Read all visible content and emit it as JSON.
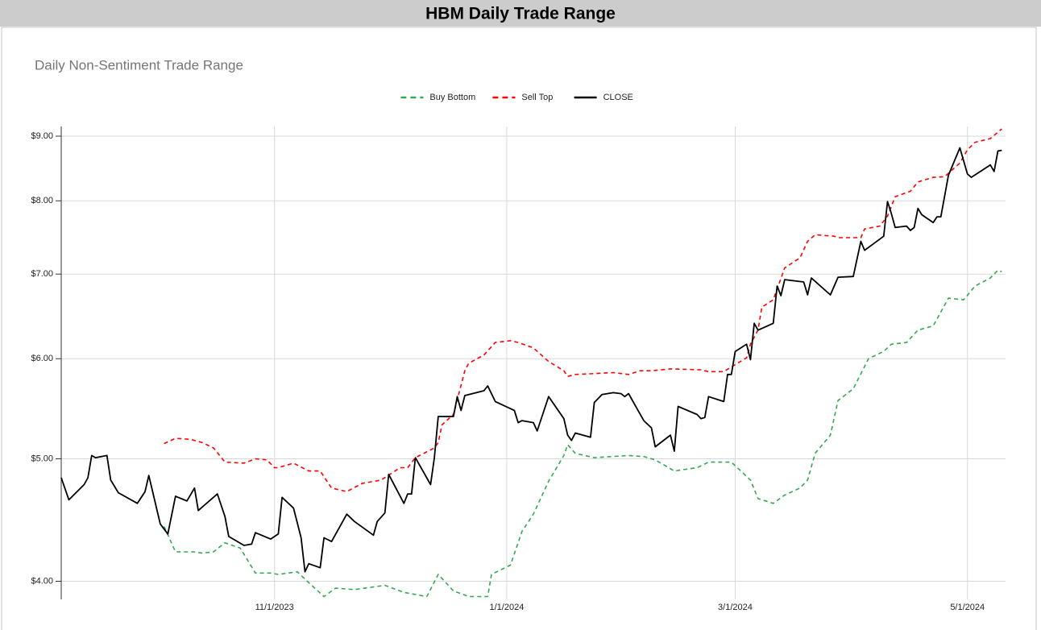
{
  "chart_data": {
    "type": "line",
    "title": "HBM Daily Trade Range",
    "subtitle": "Daily Non-Sentiment Trade Range",
    "log_y": true,
    "grid": true,
    "legend_position": "top",
    "xlim": [
      "9/6/2023",
      "5/11/2024"
    ],
    "xticks": [
      "11/1/2023",
      "1/1/2024",
      "3/1/2024",
      "5/1/2024"
    ],
    "ylim": [
      3.87,
      9.16
    ],
    "yticks": [
      {
        "value": 4,
        "label": "$4.00"
      },
      {
        "value": 5,
        "label": "$5.00"
      },
      {
        "value": 6,
        "label": "$6.00"
      },
      {
        "value": 7,
        "label": "$7.00"
      },
      {
        "value": 8,
        "label": "$8.00"
      },
      {
        "value": 9,
        "label": "$9.00"
      }
    ],
    "series": [
      {
        "name": "Buy Bottom",
        "color": "#34a853",
        "dashed": true,
        "x": [
          "10/3/2023",
          "10/6/2023",
          "10/11/2023",
          "10/13/2023",
          "10/16/2023",
          "10/19/2023",
          "10/23/2023",
          "10/27/2023",
          "10/31/2023",
          "11/2/2023",
          "11/7/2023",
          "11/10/2023",
          "11/14/2023",
          "11/17/2023",
          "11/22/2023",
          "11/30/2023",
          "12/5/2023",
          "12/11/2023",
          "12/14/2023",
          "12/18/2023",
          "12/20/2023",
          "12/22/2023",
          "12/27/2023",
          "12/28/2023",
          "1/2/2024",
          "1/5/2024",
          "1/8/2024",
          "1/12/2024",
          "1/16/2024",
          "1/17/2024",
          "1/19/2024",
          "1/24/2024",
          "2/2/2024",
          "2/6/2024",
          "2/9/2024",
          "2/14/2024",
          "2/20/2024",
          "2/23/2024",
          "2/29/2024",
          "3/5/2024",
          "3/7/2024",
          "3/11/2024",
          "3/14/2024",
          "3/18/2024",
          "3/20/2024",
          "3/22/2024",
          "3/26/2024",
          "3/28/2024",
          "4/1/2024",
          "4/5/2024",
          "4/9/2024",
          "4/11/2024",
          "4/15/2024",
          "4/18/2024",
          "4/22/2024",
          "4/26/2024",
          "4/30/2024",
          "5/3/2024",
          "5/7/2024",
          "5/9/2024",
          "5/10/2024"
        ],
        "values": [
          4.42,
          4.22,
          4.22,
          4.21,
          4.22,
          4.29,
          4.25,
          4.06,
          4.06,
          4.05,
          4.07,
          3.99,
          3.89,
          3.95,
          3.94,
          3.97,
          3.92,
          3.89,
          4.05,
          3.93,
          3.91,
          3.89,
          3.89,
          4.05,
          4.12,
          4.38,
          4.52,
          4.8,
          5.03,
          5.13,
          5.05,
          5.01,
          5.03,
          5.02,
          4.99,
          4.89,
          4.92,
          4.97,
          4.97,
          4.81,
          4.65,
          4.61,
          4.68,
          4.74,
          4.81,
          5.05,
          5.22,
          5.56,
          5.68,
          6.0,
          6.08,
          6.16,
          6.18,
          6.32,
          6.37,
          6.7,
          6.68,
          6.85,
          6.95,
          7.05,
          7.03
        ]
      },
      {
        "name": "Sell Top",
        "color": "#ff0000",
        "dashed": true,
        "x": [
          "10/3/2023",
          "10/6/2023",
          "10/10/2023",
          "10/13/2023",
          "10/16/2023",
          "10/19/2023",
          "10/24/2023",
          "10/27/2023",
          "10/30/2023",
          "11/1/2023",
          "11/2/2023",
          "11/6/2023",
          "11/10/2023",
          "11/13/2023",
          "11/16/2023",
          "11/20/2023",
          "11/24/2023",
          "11/29/2023",
          "12/4/2023",
          "12/6/2023",
          "12/8/2023",
          "12/13/2023",
          "12/14/2023",
          "12/15/2023",
          "12/18/2023",
          "12/21/2023",
          "12/22/2023",
          "12/26/2023",
          "12/29/2023",
          "1/2/2024",
          "1/4/2024",
          "1/8/2024",
          "1/12/2024",
          "1/16/2024",
          "1/17/2024",
          "1/19/2024",
          "1/24/2024",
          "1/29/2024",
          "2/2/2024",
          "2/5/2024",
          "2/8/2024",
          "2/13/2024",
          "2/21/2024",
          "2/23/2024",
          "2/27/2024",
          "2/29/2024",
          "3/4/2024",
          "3/5/2024",
          "3/7/2024",
          "3/8/2024",
          "3/11/2024",
          "3/14/2024",
          "3/18/2024",
          "3/20/2024",
          "3/22/2024",
          "3/27/2024",
          "3/28/2024",
          "4/3/2024",
          "4/4/2024",
          "4/8/2024",
          "4/10/2024",
          "4/12/2024",
          "4/16/2024",
          "4/18/2024",
          "4/22/2024",
          "4/25/2024",
          "4/29/2024",
          "5/1/2024",
          "5/3/2024",
          "5/7/2024",
          "5/10/2024"
        ],
        "values": [
          5.14,
          5.19,
          5.18,
          5.15,
          5.1,
          4.97,
          4.96,
          5.0,
          4.99,
          4.92,
          4.92,
          4.96,
          4.89,
          4.89,
          4.74,
          4.71,
          4.78,
          4.81,
          4.92,
          4.92,
          5.01,
          5.1,
          5.15,
          5.32,
          5.42,
          5.87,
          5.95,
          6.04,
          6.18,
          6.2,
          6.18,
          6.12,
          5.97,
          5.87,
          5.81,
          5.83,
          5.84,
          5.85,
          5.83,
          5.87,
          5.87,
          5.89,
          5.88,
          5.86,
          5.86,
          5.91,
          6.01,
          6.16,
          6.32,
          6.59,
          6.68,
          7.08,
          7.21,
          7.43,
          7.52,
          7.5,
          7.48,
          7.48,
          7.6,
          7.64,
          7.78,
          8.06,
          8.14,
          8.28,
          8.35,
          8.36,
          8.57,
          8.78,
          8.9,
          8.96,
          9.12
        ]
      },
      {
        "name": "CLOSE",
        "color": "#000000",
        "dashed": false,
        "x": [
          "9/6/2023",
          "9/8/2023",
          "9/12/2023",
          "9/13/2023",
          "9/14/2023",
          "9/15/2023",
          "9/18/2023",
          "9/19/2023",
          "9/21/2023",
          "9/26/2023",
          "9/28/2023",
          "9/29/2023",
          "10/2/2023",
          "10/4/2023",
          "10/6/2023",
          "10/9/2023",
          "10/11/2023",
          "10/12/2023",
          "10/17/2023",
          "10/19/2023",
          "10/20/2023",
          "10/24/2023",
          "10/26/2023",
          "10/27/2023",
          "10/31/2023",
          "11/2/2023",
          "11/3/2023",
          "11/6/2023",
          "11/8/2023",
          "11/9/2023",
          "11/10/2023",
          "11/13/2023",
          "11/14/2023",
          "11/16/2023",
          "11/20/2023",
          "11/22/2023",
          "11/27/2023",
          "11/28/2023",
          "11/30/2023",
          "12/1/2023",
          "12/5/2023",
          "12/6/2023",
          "12/7/2023",
          "12/8/2023",
          "12/12/2023",
          "12/13/2023",
          "12/14/2023",
          "12/18/2023",
          "12/19/2023",
          "12/20/2023",
          "12/21/2023",
          "12/26/2023",
          "12/27/2023",
          "12/29/2023",
          "1/3/2024",
          "1/4/2024",
          "1/5/2024",
          "1/8/2024",
          "1/9/2024",
          "1/12/2024",
          "1/16/2024",
          "1/17/2024",
          "1/18/2024",
          "1/19/2024",
          "1/23/2024",
          "1/24/2024",
          "1/26/2024",
          "1/29/2024",
          "1/31/2024",
          "2/1/2024",
          "2/2/2024",
          "2/6/2024",
          "2/8/2024",
          "2/9/2024",
          "2/13/2024",
          "2/14/2024",
          "2/15/2024",
          "2/20/2024",
          "2/21/2024",
          "2/22/2024",
          "2/23/2024",
          "2/27/2024",
          "2/28/2024",
          "2/29/2024",
          "3/1/2024",
          "3/4/2024",
          "3/5/2024",
          "3/6/2024",
          "3/7/2024",
          "3/11/2024",
          "3/12/2024",
          "3/13/2024",
          "3/14/2024",
          "3/19/2024",
          "3/20/2024",
          "3/21/2024",
          "3/26/2024",
          "3/28/2024",
          "4/1/2024",
          "4/3/2024",
          "4/4/2024",
          "4/9/2024",
          "4/10/2024",
          "4/11/2024",
          "4/12/2024",
          "4/15/2024",
          "4/16/2024",
          "4/17/2024",
          "4/18/2024",
          "4/19/2024",
          "4/22/2024",
          "4/23/2024",
          "4/24/2024",
          "4/26/2024",
          "4/29/2024",
          "5/1/2024",
          "5/2/2024",
          "5/7/2024",
          "5/8/2024",
          "5/9/2024",
          "5/10/2024"
        ],
        "values": [
          4.83,
          4.64,
          4.77,
          4.83,
          5.03,
          5.01,
          5.03,
          4.81,
          4.7,
          4.61,
          4.71,
          4.85,
          4.44,
          4.36,
          4.67,
          4.63,
          4.74,
          4.55,
          4.69,
          4.5,
          4.34,
          4.27,
          4.28,
          4.37,
          4.32,
          4.36,
          4.66,
          4.57,
          4.33,
          4.07,
          4.13,
          4.1,
          4.33,
          4.3,
          4.52,
          4.46,
          4.35,
          4.46,
          4.53,
          4.86,
          4.61,
          4.69,
          4.69,
          5.01,
          4.77,
          5.01,
          5.4,
          5.4,
          5.6,
          5.46,
          5.61,
          5.66,
          5.71,
          5.55,
          5.46,
          5.34,
          5.36,
          5.34,
          5.26,
          5.6,
          5.38,
          5.22,
          5.17,
          5.24,
          5.2,
          5.54,
          5.62,
          5.64,
          5.63,
          5.6,
          5.63,
          5.36,
          5.29,
          5.11,
          5.22,
          5.07,
          5.5,
          5.42,
          5.38,
          5.39,
          5.6,
          5.55,
          5.83,
          5.83,
          6.08,
          6.16,
          5.99,
          6.4,
          6.32,
          6.4,
          6.85,
          6.73,
          6.93,
          6.9,
          6.74,
          6.95,
          6.74,
          6.96,
          6.97,
          7.43,
          7.31,
          7.5,
          7.99,
          7.82,
          7.62,
          7.64,
          7.58,
          7.62,
          7.89,
          7.8,
          7.69,
          7.77,
          7.77,
          8.38,
          8.81,
          8.4,
          8.35,
          8.54,
          8.44,
          8.76,
          8.77
        ]
      }
    ]
  }
}
